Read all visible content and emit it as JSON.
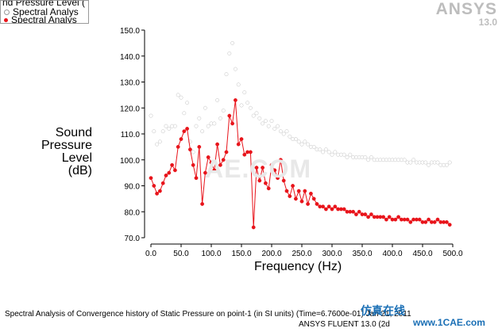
{
  "legend": {
    "title": "nd Pressure Level (",
    "entries": [
      "Spectral Analys",
      "Spectral Analys"
    ]
  },
  "logo": {
    "brand": "ANSYS",
    "version": "13.0"
  },
  "watermark": "AE.COM",
  "caption": "Spectral Analysis of Convergence history of Static Pressure on point-1 (in SI units)  (Time=6.7600e-01)      Jan 21, 2011",
  "footer": "ANSYS FLUENT 13.0 (2d",
  "site": {
    "line1": "仿真在线",
    "line2": "www.1CAE.com"
  },
  "chart_data": {
    "type": "line",
    "xlabel": "Frequency (Hz)",
    "ylabel": "Sound\nPressure\nLevel\n(dB)",
    "xlim": [
      0,
      500
    ],
    "ylim": [
      70,
      150
    ],
    "xticks": [
      "0.0",
      "50.0",
      "100.0",
      "150.0",
      "200.0",
      "250.0",
      "300.0",
      "350.0",
      "400.0",
      "450.0",
      "500.0"
    ],
    "yticks": [
      "70.0",
      "80.0",
      "90.0",
      "100.0",
      "110.0",
      "120.0",
      "130.0",
      "140.0",
      "150.0"
    ],
    "colors": {
      "white_series": "#ffffff",
      "red_series": "#e8141b",
      "axis": "#000000"
    },
    "x": [
      0,
      5,
      10,
      15,
      20,
      25,
      30,
      35,
      40,
      45,
      50,
      55,
      60,
      65,
      70,
      75,
      80,
      85,
      90,
      95,
      100,
      105,
      110,
      115,
      120,
      125,
      130,
      135,
      140,
      145,
      150,
      155,
      160,
      165,
      170,
      175,
      180,
      185,
      190,
      195,
      200,
      205,
      210,
      215,
      220,
      225,
      230,
      235,
      240,
      245,
      250,
      255,
      260,
      265,
      270,
      275,
      280,
      285,
      290,
      295,
      300,
      305,
      310,
      315,
      320,
      325,
      330,
      335,
      340,
      345,
      350,
      355,
      360,
      365,
      370,
      375,
      380,
      385,
      390,
      395,
      400,
      405,
      410,
      415,
      420,
      425,
      430,
      435,
      440,
      445,
      450,
      455,
      460,
      465,
      470,
      475,
      480,
      485,
      490,
      495
    ],
    "series": [
      {
        "name": "Spectral Analys",
        "values": [
          117,
          111,
          106,
          107,
          111,
          113,
          112,
          113,
          113,
          125,
          124,
          118,
          122,
          107,
          103,
          113,
          116,
          111,
          120,
          113,
          114,
          114,
          123,
          116,
          119,
          133,
          141,
          145,
          135,
          129,
          121,
          126,
          122,
          120,
          117,
          118,
          116,
          114,
          115,
          113,
          115,
          112,
          113,
          111,
          110,
          111,
          109,
          108,
          108,
          107,
          106,
          107,
          106,
          105,
          105,
          104,
          104,
          103,
          104,
          103,
          102,
          103,
          102,
          102,
          102,
          101,
          102,
          101,
          101,
          101,
          101,
          101,
          100,
          101,
          100,
          100,
          100,
          100,
          100,
          100,
          100,
          100,
          100,
          100,
          100,
          99,
          99,
          100,
          99,
          99,
          99,
          99,
          98,
          99,
          99,
          99,
          98,
          98,
          98,
          99
        ]
      },
      {
        "name": "Spectral Analys",
        "values": [
          93,
          90,
          87,
          88,
          91,
          94,
          95,
          98,
          96,
          105,
          108,
          111,
          112,
          104,
          98,
          93,
          105,
          83,
          95,
          101,
          99,
          96,
          106,
          98,
          100,
          103,
          117,
          114,
          123,
          106,
          108,
          102,
          103,
          103,
          74,
          97,
          92,
          97,
          91,
          89,
          98,
          96,
          93,
          100,
          92,
          88,
          86,
          90,
          85,
          88,
          84,
          88,
          83,
          87,
          85,
          83,
          82,
          82,
          81,
          82,
          81,
          82,
          81,
          81,
          81,
          80,
          80,
          80,
          79,
          80,
          79,
          79,
          78,
          79,
          78,
          78,
          78,
          78,
          77,
          78,
          77,
          77,
          78,
          77,
          77,
          77,
          76,
          77,
          77,
          77,
          76,
          76,
          77,
          76,
          76,
          77,
          76,
          76,
          76,
          75
        ]
      }
    ]
  }
}
